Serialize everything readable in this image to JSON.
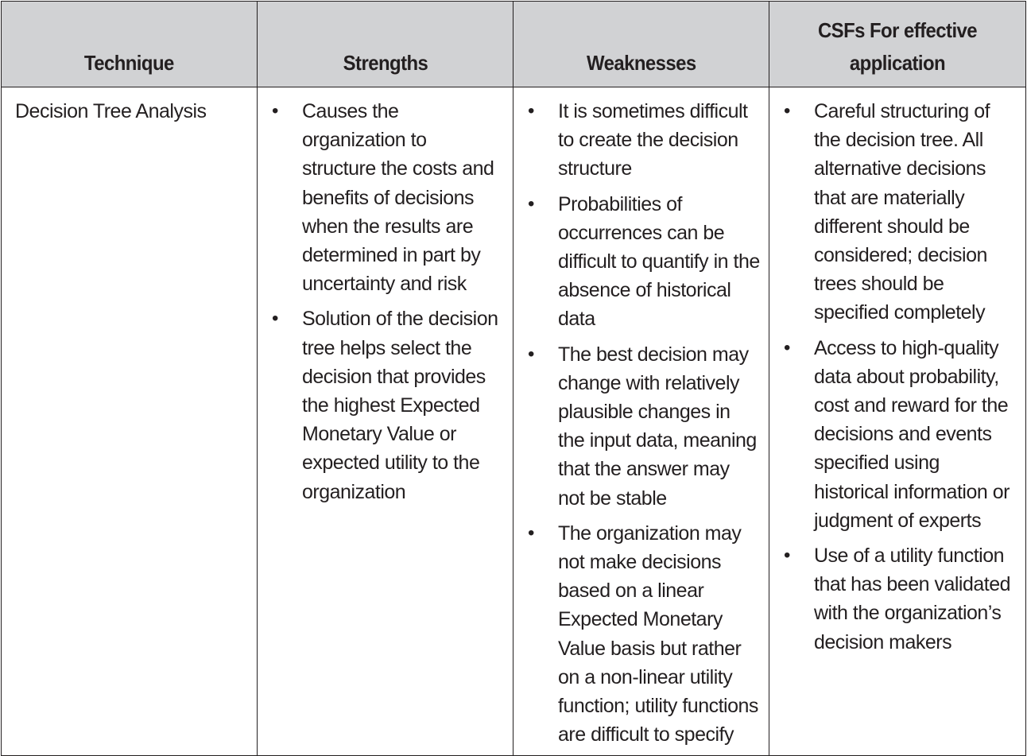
{
  "table": {
    "headers": {
      "technique": "Technique",
      "strengths": "Strengths",
      "weaknesses": "Weaknesses",
      "csfs": "CSFs For effective application"
    },
    "row": {
      "technique": "Decision Tree Analysis",
      "strengths": [
        "Causes the organization to structure the costs and benefits of decisions when the results are determined in part by uncertainty and risk",
        "Solution of the decision tree helps select the decision that provides the highest Expected Monetary Value or expected utility to the organization"
      ],
      "weaknesses": [
        "It is sometimes difficult to create the decision structure",
        "Probabilities of occurrences can be difficult to quantify in the absence of historical data",
        "The best decision may change with relatively plausible changes in the input data, meaning that the answer may not be stable",
        "The organization may not make decisions based on a linear Expected Monetary Value basis but rather on a non-linear utility function; utility functions are difficult to specify"
      ],
      "csfs": [
        "Careful structuring of the decision tree. All alternative decisions that are materially different should be considered; decision trees should be specified completely",
        "Access to high-quality data about probability, cost and reward for the decisions and events specified using historical information or judgment of experts",
        "Use of a utility function that has been validated with the organization’s decision makers"
      ]
    }
  }
}
